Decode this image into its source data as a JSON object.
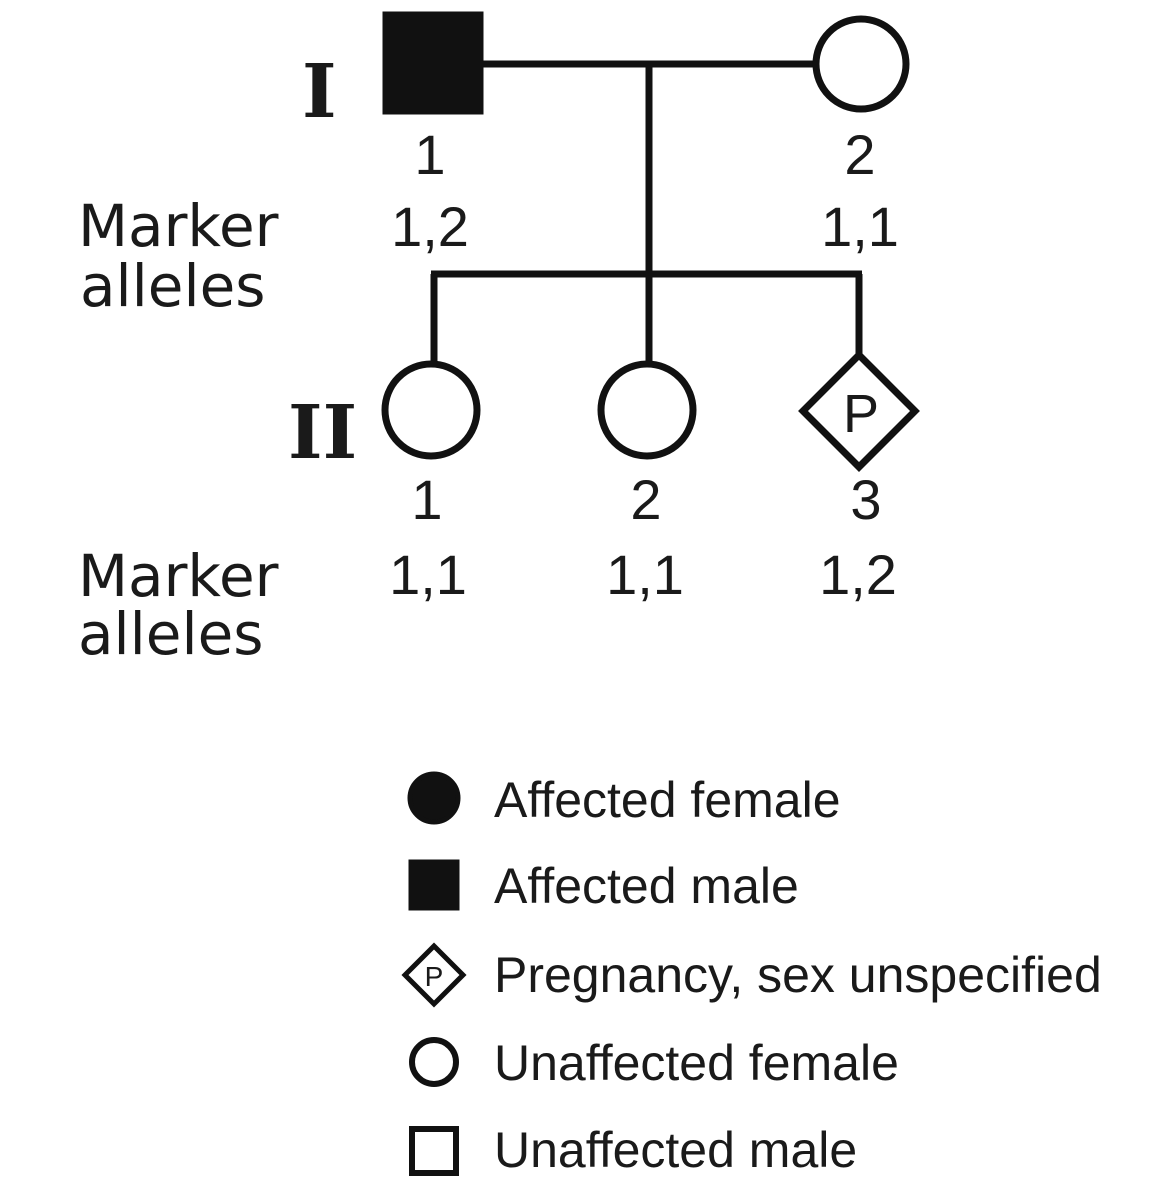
{
  "generations": [
    {
      "label": "I"
    },
    {
      "label": "II"
    }
  ],
  "marker_label": {
    "line1": "Marker",
    "line2": "alleles"
  },
  "individuals": {
    "gen1": [
      {
        "number": "1",
        "alleles": "1,2",
        "symbol": "affected-male"
      },
      {
        "number": "2",
        "alleles": "1,1",
        "symbol": "unaffected-female"
      }
    ],
    "gen2": [
      {
        "number": "1",
        "alleles": "1,1",
        "symbol": "unaffected-female"
      },
      {
        "number": "2",
        "alleles": "1,1",
        "symbol": "unaffected-female"
      },
      {
        "number": "3",
        "alleles": "1,2",
        "symbol": "pregnancy",
        "mark": "P"
      }
    ]
  },
  "legend": [
    {
      "symbol": "affected-female",
      "label": "Affected female"
    },
    {
      "symbol": "affected-male",
      "label": "Affected male"
    },
    {
      "symbol": "pregnancy",
      "mark": "P",
      "label": "Pregnancy, sex unspecified"
    },
    {
      "symbol": "unaffected-female",
      "label": "Unaffected female"
    },
    {
      "symbol": "unaffected-male",
      "label": "Unaffected male"
    }
  ]
}
